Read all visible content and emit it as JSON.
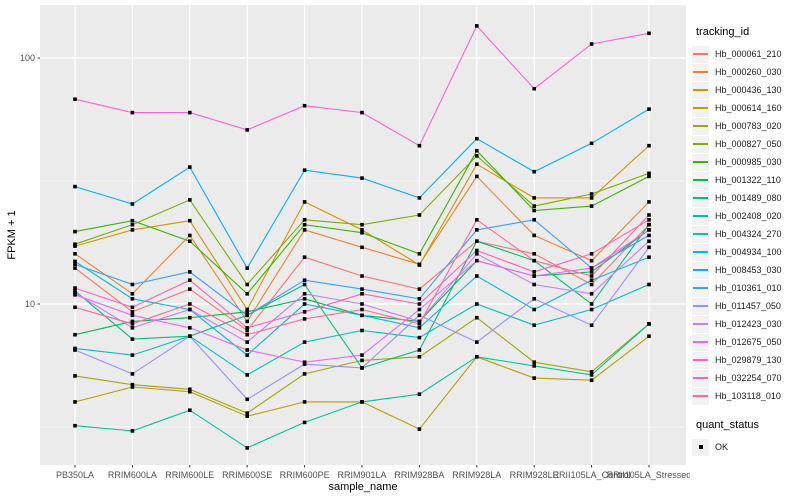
{
  "figure": {
    "panel_background": "#EBEBEB",
    "gridline_color": "#FFFFFF",
    "axis_text_color": "#4D4D4D",
    "tick_color": "#333333",
    "point_color": "#000000",
    "legend_key_fill": "#F2F2F2"
  },
  "chart_data": {
    "type": "line",
    "title": "",
    "xlabel": "sample_name",
    "ylabel": "FPKM + 1",
    "y_scale": "log10",
    "grid": true,
    "legend_position": "right",
    "y_ticks": [
      100,
      10
    ],
    "y_minor_gridlines": [
      31.62,
      3.162
    ],
    "ylim": [
      2.4,
      155
    ],
    "legend_title": "tracking_id",
    "legend2_title": "quant_status",
    "legend2_items": [
      {
        "label": "OK",
        "marker": "black-square"
      }
    ],
    "point_shape": "filled-square",
    "categories": [
      "PB350LA",
      "RRIM600LA",
      "RRIM600LE",
      "RRIM600SE",
      "RRIM600PE",
      "RRIM901LA",
      "RRIM928BA",
      "RRIM928LA",
      "RRIM928LE",
      "RRII105LA_Control",
      "RRII105LA_Stressed"
    ],
    "series": [
      {
        "name": "Hb_000061_210",
        "color": "#F8766D",
        "values": [
          14,
          9.3,
          11.5,
          7.8,
          15.5,
          13,
          11.5,
          18,
          16,
          12,
          21
        ]
      },
      {
        "name": "Hb_000260_030",
        "color": "#EA8331",
        "values": [
          16,
          11,
          19,
          8.5,
          20,
          17,
          14.5,
          33,
          19,
          15,
          26
        ]
      },
      {
        "name": "Hb_000436_130",
        "color": "#D89000",
        "values": [
          17.2,
          20,
          21.8,
          9.5,
          26,
          20,
          14.4,
          37,
          27,
          27,
          44
        ]
      },
      {
        "name": "Hb_000614_160",
        "color": "#C09B00",
        "values": [
          4.0,
          4.6,
          4.4,
          3.5,
          4.0,
          4.0,
          3.1,
          6.1,
          5.0,
          4.9,
          7.4
        ]
      },
      {
        "name": "Hb_000783_020",
        "color": "#A3A500",
        "values": [
          5.1,
          4.7,
          4.5,
          3.6,
          5.2,
          5.9,
          6.1,
          8.8,
          5.8,
          5.3,
          8.3
        ]
      },
      {
        "name": "Hb_000827_050",
        "color": "#7CAE00",
        "values": [
          17.5,
          21,
          26.5,
          12,
          22,
          21,
          23,
          40,
          25,
          28,
          34
        ]
      },
      {
        "name": "Hb_000985_030",
        "color": "#39B600",
        "values": [
          19.7,
          21.8,
          18,
          11,
          21,
          19.5,
          16,
          42,
          24,
          25,
          33
        ]
      },
      {
        "name": "Hb_001322_110",
        "color": "#00BB4E",
        "values": [
          7.5,
          8.5,
          8.8,
          9.3,
          10.5,
          9.0,
          8.5,
          15,
          13,
          13.5,
          20
        ]
      },
      {
        "name": "Hb_001489_080",
        "color": "#00BF7D",
        "values": [
          11.3,
          7.2,
          7.4,
          9.0,
          12,
          5.5,
          6.5,
          18,
          15,
          10,
          21
        ]
      },
      {
        "name": "Hb_002408_020",
        "color": "#00C1A3",
        "values": [
          3.2,
          3.05,
          3.7,
          2.6,
          3.3,
          4.0,
          4.3,
          6.1,
          5.6,
          5.15,
          8.3
        ]
      },
      {
        "name": "Hb_004324_270",
        "color": "#00BFC4",
        "values": [
          6.6,
          6.2,
          7.4,
          5.15,
          7.0,
          7.8,
          7.3,
          10,
          8.2,
          9.5,
          12
        ]
      },
      {
        "name": "Hb_004934_100",
        "color": "#00BAE0",
        "values": [
          14.9,
          10.5,
          9.5,
          6.2,
          10,
          9,
          8,
          13,
          9.5,
          12.5,
          15.5
        ]
      },
      {
        "name": "Hb_008453_030",
        "color": "#00B0F6",
        "values": [
          30,
          25.5,
          36,
          14,
          35,
          32.5,
          27,
          47,
          34.5,
          45,
          62
        ]
      },
      {
        "name": "Hb_010361_010",
        "color": "#35A2FF",
        "values": [
          14.5,
          12,
          13.5,
          9.0,
          12.5,
          11.5,
          10.5,
          20,
          22,
          14,
          19
        ]
      },
      {
        "name": "Hb_011457_050",
        "color": "#9590FF",
        "values": [
          6.5,
          5.2,
          7.4,
          4.1,
          5.7,
          5.5,
          9,
          7,
          10.5,
          8.2,
          17
        ]
      },
      {
        "name": "Hb_012423_030",
        "color": "#C77CFF",
        "values": [
          11.1,
          8,
          9.5,
          7,
          11,
          10,
          8.5,
          16,
          12,
          11,
          18
        ]
      },
      {
        "name": "Hb_012675_050",
        "color": "#E76BF3",
        "values": [
          10.9,
          9,
          8,
          6.5,
          5.8,
          6.2,
          9.5,
          15,
          13,
          14,
          20
        ]
      },
      {
        "name": "Hb_029879_130",
        "color": "#FA62DB",
        "values": [
          68,
          60,
          60,
          51,
          64,
          60,
          44,
          135,
          75,
          114,
          126
        ]
      },
      {
        "name": "Hb_032254_070",
        "color": "#FF62BC",
        "values": [
          11.6,
          9.7,
          12.5,
          8.0,
          9.3,
          11,
          10,
          16.5,
          13.5,
          16,
          22
        ]
      },
      {
        "name": "Hb_103118_010",
        "color": "#FF6A98",
        "values": [
          9.7,
          8.3,
          10,
          7.5,
          8.7,
          9.5,
          8.3,
          22,
          15,
          13,
          23
        ]
      }
    ]
  }
}
